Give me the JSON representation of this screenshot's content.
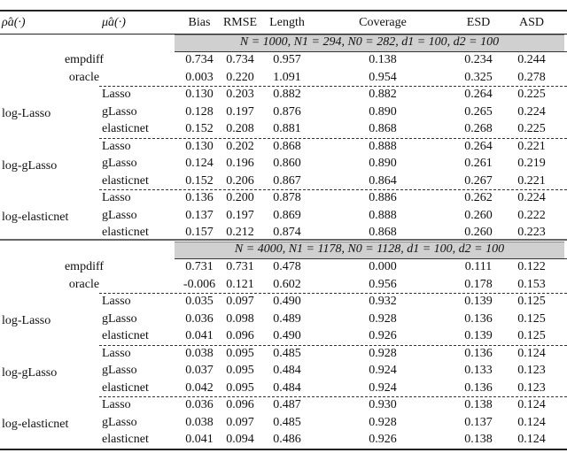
{
  "header": {
    "rho": "ρ̂a(·)",
    "mu": "μ̂a(·)",
    "columns": [
      "Bias",
      "RMSE",
      "Length",
      "Coverage",
      "ESD",
      "ASD"
    ]
  },
  "panels": [
    {
      "setting": "N = 1000, N1 = 294, N0 = 282, d1 = 100, d2 = 100",
      "baselines": [
        {
          "label": "empdiff",
          "values": [
            "0.734",
            "0.734",
            "0.957",
            "0.138",
            "0.234",
            "0.244"
          ]
        },
        {
          "label": "oracle",
          "values": [
            "0.003",
            "0.220",
            "1.091",
            "0.954",
            "0.325",
            "0.278"
          ]
        }
      ],
      "groups": [
        {
          "label": "log-Lasso",
          "rows": [
            {
              "label": "Lasso",
              "values": [
                "0.130",
                "0.203",
                "0.882",
                "0.882",
                "0.264",
                "0.225"
              ]
            },
            {
              "label": "gLasso",
              "values": [
                "0.128",
                "0.197",
                "0.876",
                "0.890",
                "0.265",
                "0.224"
              ]
            },
            {
              "label": "elasticnet",
              "values": [
                "0.152",
                "0.208",
                "0.881",
                "0.868",
                "0.268",
                "0.225"
              ]
            }
          ]
        },
        {
          "label": "log-gLasso",
          "rows": [
            {
              "label": "Lasso",
              "values": [
                "0.130",
                "0.202",
                "0.868",
                "0.888",
                "0.264",
                "0.221"
              ]
            },
            {
              "label": "gLasso",
              "values": [
                "0.124",
                "0.196",
                "0.860",
                "0.890",
                "0.261",
                "0.219"
              ]
            },
            {
              "label": "elasticnet",
              "values": [
                "0.152",
                "0.206",
                "0.867",
                "0.864",
                "0.267",
                "0.221"
              ]
            }
          ]
        },
        {
          "label": "log-elasticnet",
          "rows": [
            {
              "label": "Lasso",
              "values": [
                "0.136",
                "0.200",
                "0.878",
                "0.886",
                "0.262",
                "0.224"
              ]
            },
            {
              "label": "gLasso",
              "values": [
                "0.137",
                "0.197",
                "0.869",
                "0.888",
                "0.260",
                "0.222"
              ]
            },
            {
              "label": "elasticnet",
              "values": [
                "0.157",
                "0.212",
                "0.874",
                "0.868",
                "0.260",
                "0.223"
              ]
            }
          ]
        }
      ]
    },
    {
      "setting": "N = 4000, N1 = 1178, N0 = 1128, d1 = 100, d2 = 100",
      "baselines": [
        {
          "label": "empdiff",
          "values": [
            "0.731",
            "0.731",
            "0.478",
            "0.000",
            "0.111",
            "0.122"
          ]
        },
        {
          "label": "oracle",
          "values": [
            "-0.006",
            "0.121",
            "0.602",
            "0.956",
            "0.178",
            "0.153"
          ]
        }
      ],
      "groups": [
        {
          "label": "log-Lasso",
          "rows": [
            {
              "label": "Lasso",
              "values": [
                "0.035",
                "0.097",
                "0.490",
                "0.932",
                "0.139",
                "0.125"
              ]
            },
            {
              "label": "gLasso",
              "values": [
                "0.036",
                "0.098",
                "0.489",
                "0.928",
                "0.136",
                "0.125"
              ]
            },
            {
              "label": "elasticnet",
              "values": [
                "0.041",
                "0.096",
                "0.490",
                "0.926",
                "0.139",
                "0.125"
              ]
            }
          ]
        },
        {
          "label": "log-gLasso",
          "rows": [
            {
              "label": "Lasso",
              "values": [
                "0.038",
                "0.095",
                "0.485",
                "0.928",
                "0.136",
                "0.124"
              ]
            },
            {
              "label": "gLasso",
              "values": [
                "0.037",
                "0.095",
                "0.484",
                "0.924",
                "0.133",
                "0.123"
              ]
            },
            {
              "label": "elasticnet",
              "values": [
                "0.042",
                "0.095",
                "0.484",
                "0.924",
                "0.136",
                "0.123"
              ]
            }
          ]
        },
        {
          "label": "log-elasticnet",
          "rows": [
            {
              "label": "Lasso",
              "values": [
                "0.036",
                "0.096",
                "0.487",
                "0.930",
                "0.138",
                "0.124"
              ]
            },
            {
              "label": "gLasso",
              "values": [
                "0.038",
                "0.097",
                "0.485",
                "0.928",
                "0.137",
                "0.124"
              ]
            },
            {
              "label": "elasticnet",
              "values": [
                "0.041",
                "0.094",
                "0.486",
                "0.926",
                "0.138",
                "0.124"
              ]
            }
          ]
        }
      ]
    }
  ]
}
